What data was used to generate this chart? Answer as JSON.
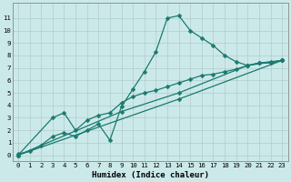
{
  "title": "",
  "xlabel": "Humidex (Indice chaleur)",
  "ylabel": "",
  "background_color": "#cce9e9",
  "grid_color": "#b0cccc",
  "line_color": "#1a7a6e",
  "xlim": [
    -0.5,
    23.5
  ],
  "ylim": [
    -0.5,
    12.2
  ],
  "xticks": [
    0,
    1,
    2,
    3,
    4,
    5,
    6,
    7,
    8,
    9,
    10,
    11,
    12,
    13,
    14,
    15,
    16,
    17,
    18,
    19,
    20,
    21,
    22,
    23
  ],
  "yticks": [
    0,
    1,
    2,
    3,
    4,
    5,
    6,
    7,
    8,
    9,
    10,
    11
  ],
  "series": [
    {
      "x": [
        0,
        1,
        2,
        3,
        4,
        5,
        6,
        7,
        8,
        9,
        10,
        11,
        12,
        13,
        14,
        15,
        16,
        17,
        18,
        19,
        20,
        21,
        22,
        23
      ],
      "y": [
        0.1,
        0.3,
        0.8,
        1.5,
        1.8,
        1.5,
        2.0,
        2.5,
        1.2,
        3.9,
        5.3,
        6.7,
        8.3,
        11.0,
        11.2,
        10.0,
        9.4,
        8.8,
        8.0,
        7.5,
        7.2,
        7.4,
        7.4,
        7.6
      ]
    },
    {
      "x": [
        0,
        3,
        4,
        5,
        6,
        7,
        8,
        9,
        10,
        11,
        12,
        13,
        14,
        15,
        16,
        17,
        18,
        19,
        20,
        21,
        22,
        23
      ],
      "y": [
        0.0,
        3.0,
        3.4,
        2.0,
        2.8,
        3.2,
        3.4,
        4.2,
        4.7,
        5.0,
        5.2,
        5.5,
        5.8,
        6.1,
        6.4,
        6.5,
        6.7,
        6.9,
        7.2,
        7.4,
        7.5,
        7.6
      ]
    },
    {
      "x": [
        0,
        9,
        14,
        20,
        23
      ],
      "y": [
        0.0,
        3.5,
        5.0,
        7.2,
        7.6
      ]
    },
    {
      "x": [
        0,
        14,
        23
      ],
      "y": [
        0.0,
        4.5,
        7.6
      ]
    }
  ],
  "markersize": 2.5,
  "linewidth": 0.9,
  "tick_fontsize": 5.2,
  "xlabel_fontsize": 6.5
}
